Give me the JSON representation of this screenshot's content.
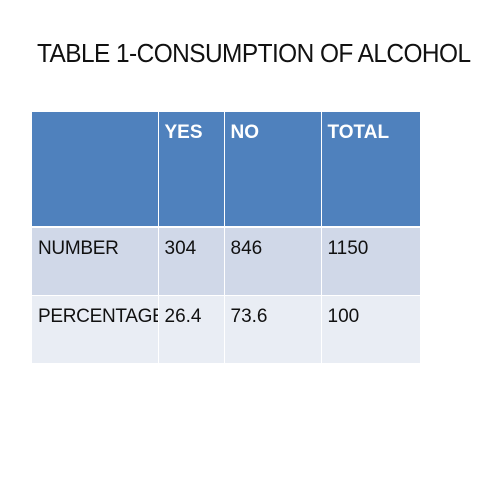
{
  "title": "TABLE 1-CONSUMPTION OF ALCOHOL",
  "table": {
    "headers": [
      "",
      "YES",
      "NO",
      "TOTAL"
    ],
    "rows": [
      [
        "NUMBER",
        "304",
        "846",
        "1150"
      ],
      [
        "PERCENTAGE",
        "26.4",
        "73.6",
        "100"
      ]
    ]
  },
  "colors": {
    "header_bg": "#4f81bd",
    "row_odd_bg": "#d0d8e8",
    "row_even_bg": "#e9edf4"
  }
}
